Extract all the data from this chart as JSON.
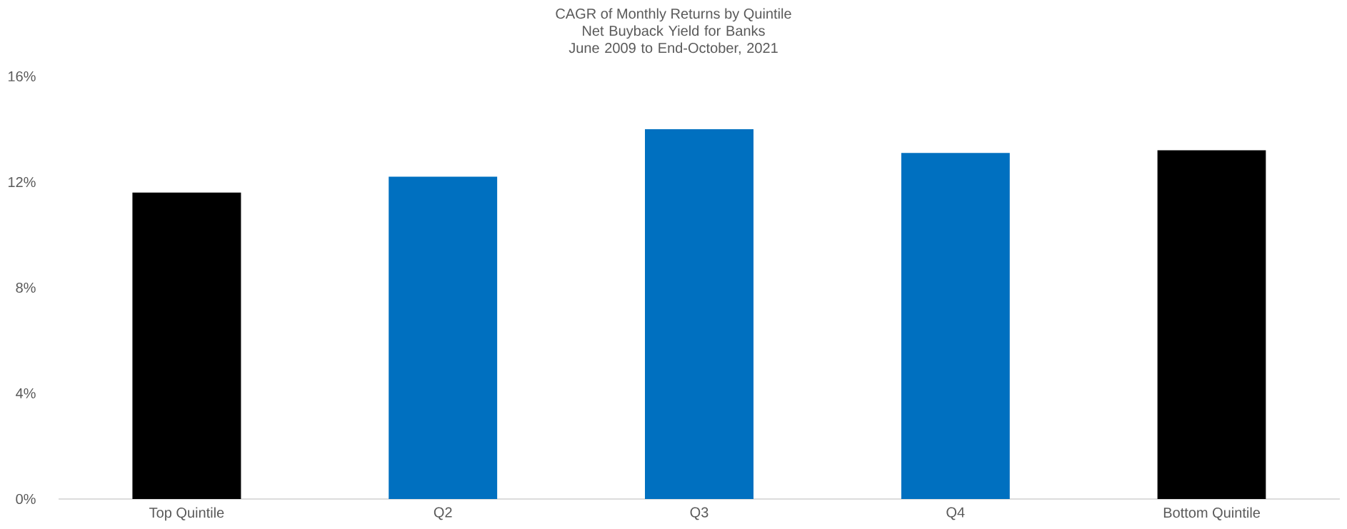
{
  "chart_data": {
    "type": "bar",
    "title": "CAGR of Monthly Returns by Quintile",
    "subtitle": "Net Buyback Yield for Banks June 2009 to End-October, 2021",
    "categories": [
      "Top Quintile",
      "Q2",
      "Q3",
      "Q4",
      "Bottom Quintile"
    ],
    "values": [
      11.6,
      12.2,
      14.0,
      13.1,
      13.2
    ],
    "colors": [
      "#000000",
      "#0070c0",
      "#0070c0",
      "#0070c0",
      "#000000"
    ],
    "ylim": [
      0,
      16
    ],
    "yticks": [
      {
        "value": 0,
        "label": "0%"
      },
      {
        "value": 4,
        "label": "4%"
      },
      {
        "value": 8,
        "label": "8%"
      },
      {
        "value": 12,
        "label": "12%"
      },
      {
        "value": 16,
        "label": "16%"
      }
    ]
  }
}
